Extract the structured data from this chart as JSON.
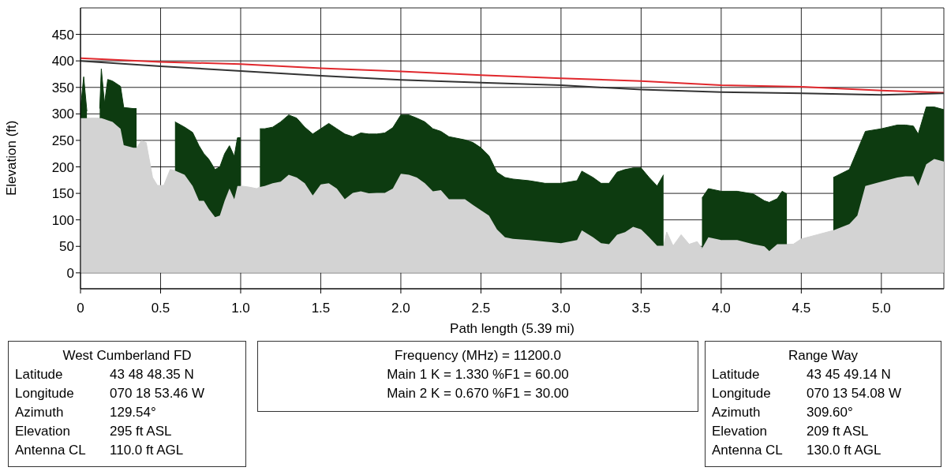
{
  "chart_data": {
    "type": "area",
    "stacked": true,
    "xlabel": "Path length (5.39 mi)",
    "ylabel": "Elevation (ft)",
    "grid": true,
    "legend": false,
    "marker": "none",
    "xlim": [
      0,
      5.39
    ],
    "ylim": [
      -30,
      500
    ],
    "xticks": [
      0,
      {
        "value": 0.5,
        "label": "0.5"
      },
      {
        "value": 1,
        "label": "1.0"
      },
      {
        "value": 1.5,
        "label": "1.5"
      },
      {
        "value": 2,
        "label": "2.0"
      },
      {
        "value": 2.5,
        "label": "2.5"
      },
      {
        "value": 3,
        "label": "3.0"
      },
      {
        "value": 3.5,
        "label": "3.5"
      },
      {
        "value": 4,
        "label": "4.0"
      },
      {
        "value": 4.5,
        "label": "4.5"
      },
      {
        "value": 5,
        "label": "5.0"
      }
    ],
    "yticks": [
      0,
      50,
      100,
      150,
      200,
      250,
      300,
      350,
      400,
      450
    ],
    "x": [
      0,
      0.02,
      0.04,
      0.06,
      0.1,
      0.12,
      0.13,
      0.15,
      0.17,
      0.2,
      0.25,
      0.27,
      0.33,
      0.35,
      0.38,
      0.41,
      0.45,
      0.48,
      0.5,
      0.52,
      0.56,
      0.59,
      0.65,
      0.7,
      0.74,
      0.77,
      0.8,
      0.84,
      0.87,
      0.9,
      0.93,
      0.96,
      0.98,
      1,
      1.05,
      1.1,
      1.12,
      1.15,
      1.2,
      1.25,
      1.3,
      1.35,
      1.4,
      1.45,
      1.5,
      1.55,
      1.6,
      1.65,
      1.7,
      1.75,
      1.8,
      1.85,
      1.9,
      1.95,
      2,
      2.05,
      2.1,
      2.15,
      2.2,
      2.25,
      2.3,
      2.35,
      2.4,
      2.45,
      2.5,
      2.55,
      2.6,
      2.65,
      2.7,
      2.8,
      2.9,
      3,
      3.1,
      3.13,
      3.2,
      3.25,
      3.3,
      3.35,
      3.4,
      3.45,
      3.5,
      3.55,
      3.6,
      3.64,
      3.66,
      3.7,
      3.75,
      3.8,
      3.85,
      3.88,
      3.92,
      4,
      4.1,
      4.2,
      4.27,
      4.3,
      4.35,
      4.38,
      4.41,
      4.45,
      4.5,
      4.6,
      4.7,
      4.8,
      4.85,
      4.9,
      5,
      5.1,
      5.15,
      5.2,
      5.23,
      5.28,
      5.33,
      5.39
    ],
    "series": [
      {
        "color": "#d3d3d3",
        "values": [
          292,
          292,
          292,
          292,
          292,
          292,
          292,
          290,
          288,
          285,
          272,
          241,
          236,
          236,
          249,
          246,
          180,
          165,
          165,
          165,
          195,
          193,
          185,
          164,
          136,
          136,
          121,
          105,
          108,
          136,
          159,
          139,
          164,
          164,
          162,
          159,
          162,
          164,
          169,
          172,
          185,
          180,
          169,
          146,
          167,
          169,
          159,
          139,
          151,
          154,
          150,
          151,
          151,
          159,
          187,
          185,
          180,
          169,
          154,
          156,
          139,
          139,
          139,
          128,
          118,
          108,
          82,
          67,
          64,
          62,
          59,
          56,
          62,
          80,
          67,
          56,
          54,
          72,
          77,
          87,
          82,
          67,
          51,
          51,
          77,
          51,
          72,
          54,
          59,
          46,
          67,
          62,
          62,
          54,
          50,
          41,
          54,
          54,
          54,
          54,
          64,
          72,
          80,
          92,
          108,
          164,
          172,
          180,
          182,
          182,
          164,
          205,
          215,
          210
        ]
      },
      {
        "color": "#0d3b10",
        "values": [
          18,
          78,
          13,
          null,
          null,
          18,
          93,
          30,
          77,
          77,
          80,
          71,
          74,
          74,
          null,
          null,
          null,
          null,
          null,
          null,
          null,
          92,
          90,
          101,
          104,
          89,
          94,
          90,
          92,
          89,
          81,
          81,
          91,
          91,
          null,
          null,
          110,
          108,
          106,
          113,
          113,
          112,
          106,
          116,
          105,
          113,
          113,
          123,
          106,
          110,
          112,
          111,
          113,
          115,
          111,
          113,
          112,
          116,
          118,
          111,
          118,
          115,
          112,
          118,
          118,
          113,
          108,
          113,
          113,
          112,
          110,
          113,
          112,
          112,
          113,
          113,
          115,
          118,
          118,
          111,
          116,
          113,
          113,
          134,
          null,
          null,
          null,
          null,
          null,
          95,
          92,
          92,
          92,
          95,
          86,
          92,
          86,
          100,
          95,
          null,
          null,
          null,
          100,
          103,
          123,
          103,
          100,
          99,
          97,
          95,
          98,
          108,
          98,
          98
        ]
      },
      {
        "type": "line",
        "color": "#e0282d",
        "x": [
          0,
          0.5,
          1,
          1.5,
          2,
          2.5,
          3,
          3.5,
          4,
          4.5,
          5,
          5.39
        ],
        "values": [
          405,
          398,
          394,
          386,
          380,
          373,
          367,
          362,
          354,
          351,
          344,
          340
        ]
      },
      {
        "type": "line",
        "color": "#333333",
        "x": [
          0,
          0.5,
          1,
          1.5,
          2,
          2.5,
          3,
          3.5,
          4,
          4.5,
          5,
          5.39
        ],
        "values": [
          400,
          390,
          381,
          372,
          364,
          359,
          354,
          346,
          341,
          339,
          336,
          339
        ]
      }
    ],
    "annotations": [
      "West Cumberland FD\nLatitude\t43 48 48.35 N\nLongitude\t070 18 53.46 W\nAzimuth\t129.54°\nElevation\t295 ft ASL\nAntenna CL\t110.0 ft AGL",
      "Frequency (MHz) = 11200.0\nMain 1 K = 1.330 %F1 = 60.00\nMain 2 K = 0.670 %F1 = 30.00",
      "Range Way\nLatitude\t43 45 49.14 N\nLongitude\t070 13 54.08 W\nAzimuth\t309.60°\nElevation\t209 ft ASL\nAntenna CL\t130.0 ft AGL"
    ]
  }
}
